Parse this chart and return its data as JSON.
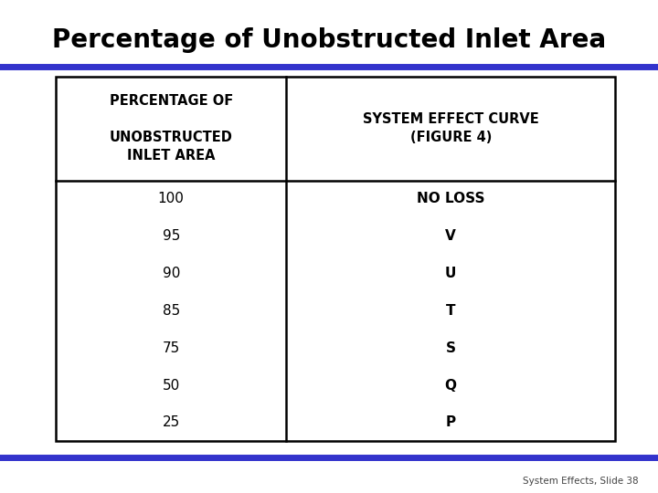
{
  "title": "Percentage of Unobstructed Inlet Area",
  "title_fontsize": 20,
  "title_fontweight": "bold",
  "title_color": "#000000",
  "header_left": "PERCENTAGE OF\n\nUNOBSTRUCTED\nINLET AREA",
  "header_right": "SYSTEM EFFECT CURVE\n(FIGURE 4)",
  "data_left": [
    "100",
    "95",
    "90",
    "85",
    "75",
    "50",
    "25"
  ],
  "data_right": [
    "NO LOSS",
    "V",
    "U",
    "T",
    "S",
    "Q",
    "P"
  ],
  "footer_text": "System Effects, Slide 38",
  "top_line_color": "#3333cc",
  "bottom_line_color": "#3333cc",
  "background_color": "#ffffff",
  "table_border_color": "#000000"
}
